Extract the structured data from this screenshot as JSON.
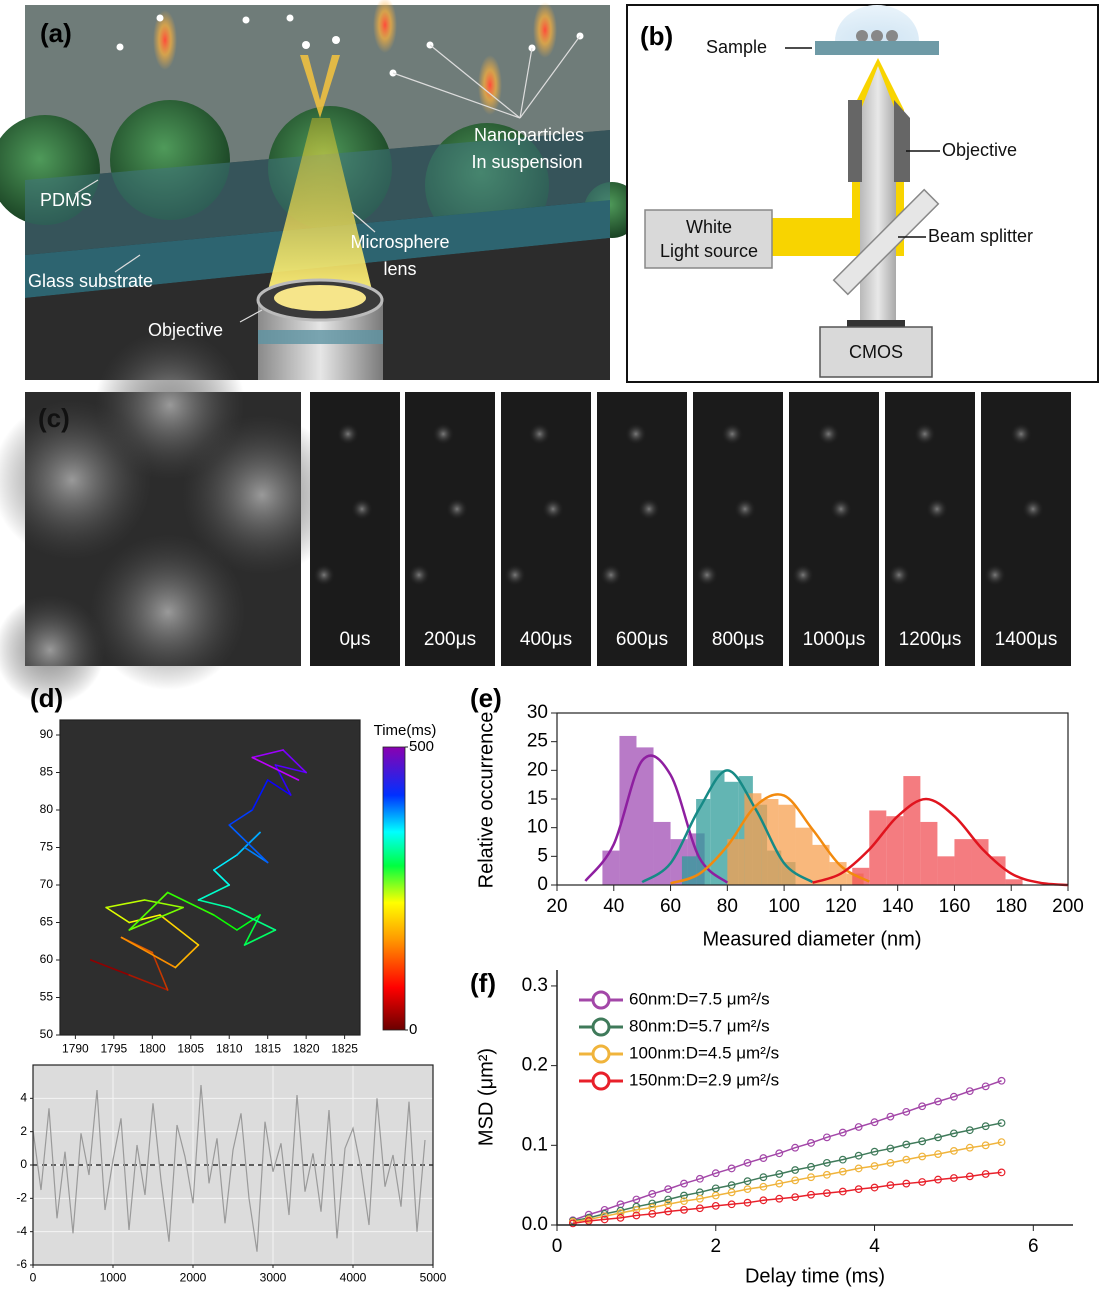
{
  "panels": {
    "a": {
      "tag": "(a)",
      "nanoparticles": [
        "Nanoparticles",
        "In suspension"
      ],
      "pdms": "PDMS",
      "glass": "Glass substrate",
      "lens": [
        "Microsphere",
        "lens"
      ],
      "objective": "Objective"
    },
    "b": {
      "tag": "(b)",
      "sample": "Sample",
      "objective": "Objective",
      "light_source": [
        "White",
        "Light source"
      ],
      "beam_splitter": "Beam splitter",
      "cmos": "CMOS"
    },
    "c": {
      "tag": "(c)",
      "frames": [
        "0μs",
        "200μs",
        "400μs",
        "600μs",
        "800μs",
        "1000μs",
        "1200μs",
        "1400μs"
      ]
    },
    "d": {
      "tag": "(d)"
    },
    "e": {
      "tag": "(e)"
    },
    "f": {
      "tag": "(f)"
    }
  },
  "chart_data": [
    {
      "type": "trajectory",
      "background": "#2e2e2e",
      "xlim": [
        1788,
        1827
      ],
      "ylim": [
        50,
        92
      ],
      "xticks": [
        1790,
        1795,
        1800,
        1805,
        1810,
        1815,
        1820,
        1825
      ],
      "yticks": [
        50,
        55,
        60,
        65,
        70,
        75,
        80,
        85,
        90
      ],
      "x": [
        1792,
        1797,
        1802,
        1800,
        1796,
        1803,
        1806,
        1801,
        1797,
        1794,
        1799,
        1804,
        1797,
        1802,
        1808,
        1811,
        1814,
        1812,
        1816,
        1810,
        1806,
        1810,
        1808,
        1811,
        1814,
        1812,
        1815,
        1810,
        1813,
        1815,
        1818,
        1816,
        1820,
        1817,
        1813,
        1819
      ],
      "values": [
        60,
        58,
        56,
        61,
        63,
        59,
        62,
        66,
        65,
        67,
        68,
        67,
        64,
        69,
        66,
        64,
        66,
        62,
        64,
        67,
        68,
        70,
        72,
        74,
        77,
        75,
        73,
        78,
        80,
        84,
        82,
        86,
        85,
        88,
        87,
        84
      ],
      "colorbar": {
        "title": "Time(ms)",
        "lim": [
          0,
          500
        ],
        "ticks": [
          0,
          500
        ]
      }
    },
    {
      "type": "line",
      "background": "#dcdcdc",
      "grid": true,
      "color": "#9a9a9a",
      "hline": 0,
      "xlim": [
        0,
        5000
      ],
      "ylim": [
        -6,
        6
      ],
      "xticks": [
        0,
        1000,
        2000,
        3000,
        4000,
        5000
      ],
      "yticks": [
        -6,
        -4,
        -2,
        0,
        2,
        4
      ],
      "x": [
        0,
        100,
        200,
        300,
        400,
        500,
        600,
        700,
        800,
        900,
        1000,
        1100,
        1200,
        1300,
        1400,
        1500,
        1600,
        1700,
        1800,
        1900,
        2000,
        2100,
        2200,
        2300,
        2400,
        2500,
        2600,
        2700,
        2800,
        2900,
        3000,
        3100,
        3200,
        3300,
        3400,
        3500,
        3600,
        3700,
        3800,
        3900,
        4000,
        4100,
        4200,
        4300,
        4400,
        4500,
        4600,
        4700,
        4800,
        4900
      ],
      "values": [
        2.1,
        -1.5,
        3.4,
        -3.2,
        0.8,
        -4.1,
        1.9,
        -0.6,
        4.5,
        -2.7,
        0.3,
        2.8,
        -3.9,
        1.2,
        -1.8,
        3.7,
        -0.9,
        -4.6,
        2.4,
        0.5,
        -2.3,
        4.8,
        -1.1,
        1.6,
        -3.5,
        0.9,
        3.1,
        -2.0,
        -5.2,
        2.6,
        -0.4,
        1.3,
        -3.0,
        4.2,
        -1.6,
        0.7,
        -2.8,
        3.3,
        -4.4,
        1.0,
        2.2,
        -0.2,
        -3.6,
        4.0,
        -1.3,
        0.6,
        -2.5,
        3.8,
        -4.0,
        1.5
      ]
    },
    {
      "type": "histogram",
      "x_label": "Measured diameter (nm)",
      "y_label": "Relative occurrence",
      "xlim": [
        20,
        200
      ],
      "ylim": [
        0,
        30
      ],
      "xticks": [
        20,
        40,
        60,
        80,
        100,
        120,
        140,
        160,
        180,
        200
      ],
      "yticks": [
        0,
        5,
        10,
        15,
        20,
        25,
        30
      ],
      "series": [
        {
          "color": "#a04db4",
          "bins": [
            36,
            42,
            48,
            54,
            60,
            66,
            72
          ],
          "values": [
            6,
            26,
            24,
            11,
            8,
            9
          ]
        },
        {
          "color": "#2f9c9a",
          "bins": [
            64,
            69,
            74,
            79,
            84,
            89,
            94,
            99,
            104
          ],
          "values": [
            5,
            15,
            20,
            18,
            19,
            14,
            6,
            4
          ]
        },
        {
          "color": "#f7a050",
          "bins": [
            80,
            86,
            92,
            98,
            104,
            110,
            116,
            122,
            128
          ],
          "values": [
            8,
            16,
            15,
            14,
            10,
            7,
            4,
            2
          ]
        },
        {
          "color": "#f05055",
          "bins": [
            124,
            130,
            136,
            142,
            148,
            154,
            160,
            166,
            172,
            178,
            184
          ],
          "values": [
            3,
            13,
            12,
            19,
            11,
            5,
            8,
            8,
            5,
            1
          ]
        }
      ],
      "fit_x": [
        20,
        30,
        40,
        50,
        60,
        70,
        80,
        90,
        100,
        110,
        120,
        130,
        140,
        150,
        160,
        170,
        180,
        190,
        200
      ],
      "fits": [
        {
          "color": "#8e1fa0",
          "values": [
            null,
            0.7,
            7.1,
            21.7,
            19.2,
            4.9,
            0.4,
            null,
            null,
            null,
            null,
            null,
            null,
            null,
            null,
            null,
            null,
            null,
            null
          ]
        },
        {
          "color": "#168a86",
          "values": [
            null,
            null,
            null,
            0.5,
            3.8,
            13.2,
            20,
            13.2,
            3.8,
            0.5,
            null,
            null,
            null,
            null,
            null,
            null,
            null,
            null,
            null
          ]
        },
        {
          "color": "#f28a0e",
          "values": [
            null,
            null,
            null,
            null,
            0.3,
            1.9,
            6.8,
            13.8,
            15.6,
            9.7,
            3.3,
            0.6,
            null,
            null,
            null,
            null,
            null,
            null,
            null
          ]
        },
        {
          "color": "#e0141e",
          "values": [
            null,
            null,
            null,
            null,
            null,
            null,
            null,
            null,
            null,
            0.4,
            2.0,
            6.2,
            12.0,
            15,
            12.0,
            6.2,
            2.0,
            0.4,
            0
          ]
        }
      ]
    },
    {
      "type": "line",
      "markers": true,
      "legend": "upper left",
      "x_label": "Delay time (ms)",
      "y_label": "MSD (μm²)",
      "xlim": [
        0,
        6.5
      ],
      "ylim": [
        0,
        0.32
      ],
      "xticks": [
        0,
        2,
        4,
        6
      ],
      "yticks": [
        {
          "value": 0,
          "label": "0.0"
        },
        0.1,
        0.2,
        0.3
      ],
      "x": [
        0.2,
        0.4,
        0.6,
        0.8,
        1.0,
        1.2,
        1.4,
        1.6,
        1.8,
        2.0,
        2.2,
        2.4,
        2.6,
        2.8,
        3.0,
        3.2,
        3.4,
        3.6,
        3.8,
        4.0,
        4.2,
        4.4,
        4.6,
        4.8,
        5.0,
        5.2,
        5.4,
        5.6
      ],
      "series": [
        {
          "name": "60nm:D=7.5 μm²/s",
          "color": "#a347a8",
          "values": [
            0.006,
            0.013,
            0.019,
            0.026,
            0.032,
            0.039,
            0.045,
            0.052,
            0.058,
            0.065,
            0.071,
            0.078,
            0.084,
            0.09,
            0.097,
            0.103,
            0.11,
            0.116,
            0.123,
            0.129,
            0.136,
            0.142,
            0.149,
            0.155,
            0.161,
            0.168,
            0.174,
            0.181
          ]
        },
        {
          "name": "80nm:D=5.7 μm²/s",
          "color": "#3f7a5a",
          "values": [
            0.005,
            0.009,
            0.014,
            0.018,
            0.023,
            0.027,
            0.032,
            0.037,
            0.041,
            0.046,
            0.05,
            0.055,
            0.06,
            0.064,
            0.069,
            0.073,
            0.078,
            0.082,
            0.087,
            0.092,
            0.096,
            0.101,
            0.105,
            0.11,
            0.115,
            0.119,
            0.124,
            0.128
          ]
        },
        {
          "name": "100nm:D=4.5 μm²/s",
          "color": "#f0b43c",
          "values": [
            0.004,
            0.007,
            0.011,
            0.015,
            0.019,
            0.022,
            0.026,
            0.03,
            0.033,
            0.037,
            0.041,
            0.045,
            0.048,
            0.052,
            0.056,
            0.06,
            0.063,
            0.067,
            0.071,
            0.074,
            0.078,
            0.082,
            0.086,
            0.089,
            0.093,
            0.097,
            0.1,
            0.104
          ]
        },
        {
          "name": "150nm:D=2.9 μm²/s",
          "color": "#e8202a",
          "values": [
            0.002,
            0.005,
            0.007,
            0.009,
            0.012,
            0.014,
            0.017,
            0.019,
            0.021,
            0.024,
            0.026,
            0.028,
            0.031,
            0.033,
            0.035,
            0.038,
            0.04,
            0.042,
            0.045,
            0.047,
            0.05,
            0.052,
            0.054,
            0.057,
            0.059,
            0.061,
            0.064,
            0.066
          ]
        }
      ]
    }
  ]
}
